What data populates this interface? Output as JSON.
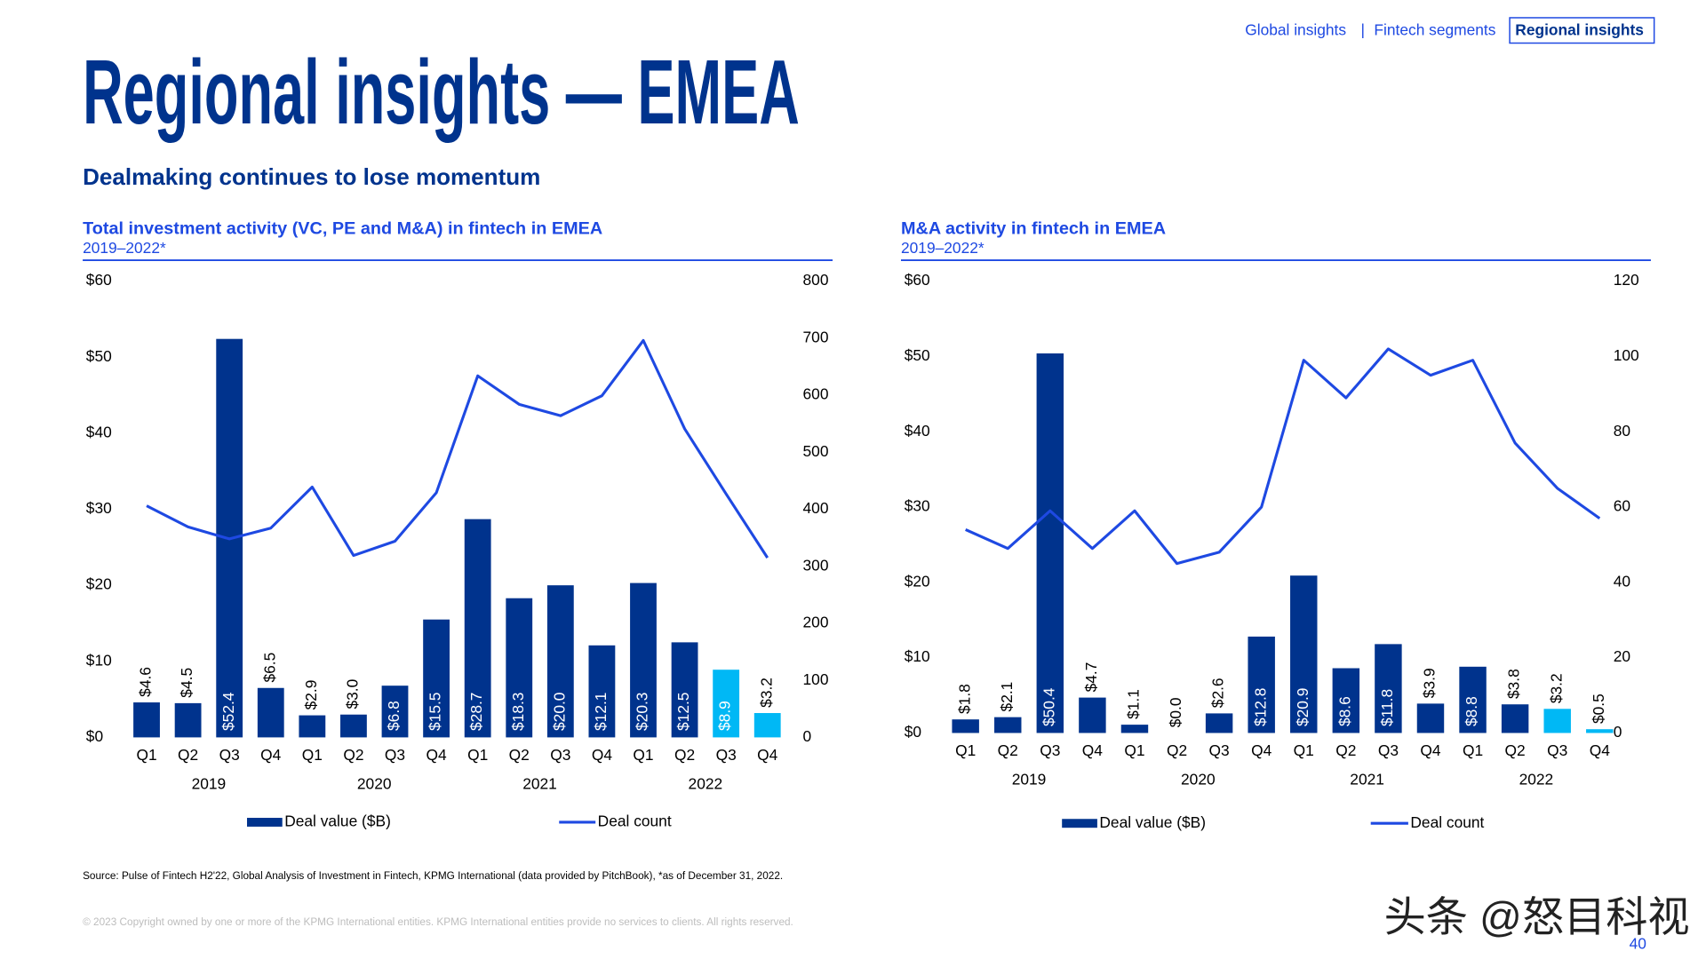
{
  "header": {
    "nav": [
      "Global insights",
      "|",
      "Fintech segments",
      "Regional insights"
    ],
    "title": "Regional insights — EMEA",
    "subtitle": "Dealmaking continues to lose momentum"
  },
  "chart_data": [
    {
      "type": "combo",
      "title": "Total investment activity (VC, PE and M&A) in fintech in EMEA",
      "subtitle": "2019–2022*",
      "categories": [
        "Q1",
        "Q2",
        "Q3",
        "Q4",
        "Q1",
        "Q2",
        "Q3",
        "Q4",
        "Q1",
        "Q2",
        "Q3",
        "Q4",
        "Q1",
        "Q2",
        "Q3",
        "Q4"
      ],
      "groups": [
        "2019",
        "2020",
        "2021",
        "2022"
      ],
      "series": [
        {
          "name": "Deal value ($B)",
          "type": "bar",
          "color": "#00338d",
          "colors": [
            "#00338d",
            "#00338d",
            "#00338d",
            "#00338d",
            "#00338d",
            "#00338d",
            "#00338d",
            "#00338d",
            "#00338d",
            "#00338d",
            "#00338d",
            "#00338d",
            "#00338d",
            "#00338d",
            "#00b8f5",
            "#00b8f5"
          ],
          "values": [
            4.6,
            4.5,
            52.4,
            6.5,
            2.9,
            3.0,
            6.8,
            15.5,
            28.7,
            18.3,
            20.0,
            12.1,
            20.3,
            12.5,
            8.9,
            3.2
          ],
          "value_labels": [
            "$4.6",
            "$4.5",
            "$52.4",
            "$6.5",
            "$2.9",
            "$3.0",
            "$6.8",
            "$15.5",
            "$28.7",
            "$18.3",
            "$20.0",
            "$12.1",
            "$20.3",
            "$12.5",
            "$8.9",
            "$3.2"
          ]
        },
        {
          "name": "Deal count",
          "type": "line",
          "axis": "y2",
          "color": "#1e49e2",
          "values": [
            406,
            369,
            348,
            367,
            439,
            319,
            344,
            429,
            634,
            584,
            564,
            599,
            696,
            541,
            427,
            315
          ]
        }
      ],
      "ylim": [
        0,
        60
      ],
      "yticks": [
        {
          "value": 0,
          "label": "$0"
        },
        {
          "value": 10,
          "label": "$10"
        },
        {
          "value": 20,
          "label": "$20"
        },
        {
          "value": 30,
          "label": "$30"
        },
        {
          "value": 40,
          "label": "$40"
        },
        {
          "value": 50,
          "label": "$50"
        },
        {
          "value": 60,
          "label": "$60"
        }
      ],
      "y2lim": [
        0,
        800
      ],
      "y2ticks": [
        0,
        100,
        200,
        300,
        400,
        500,
        600,
        700,
        800
      ]
    },
    {
      "type": "combo",
      "title": "M&A activity in fintech in EMEA",
      "subtitle": "2019–2022*",
      "categories": [
        "Q1",
        "Q2",
        "Q3",
        "Q4",
        "Q1",
        "Q2",
        "Q3",
        "Q4",
        "Q1",
        "Q2",
        "Q3",
        "Q4",
        "Q1",
        "Q2",
        "Q3",
        "Q4"
      ],
      "groups": [
        "2019",
        "2020",
        "2021",
        "2022"
      ],
      "series": [
        {
          "name": "Deal value ($B)",
          "type": "bar",
          "color": "#00338d",
          "colors": [
            "#00338d",
            "#00338d",
            "#00338d",
            "#00338d",
            "#00338d",
            "#00338d",
            "#00338d",
            "#00338d",
            "#00338d",
            "#00338d",
            "#00338d",
            "#00338d",
            "#00338d",
            "#00338d",
            "#00b8f5",
            "#00b8f5"
          ],
          "values": [
            1.8,
            2.1,
            50.4,
            4.7,
            1.1,
            0.0,
            2.6,
            12.8,
            20.9,
            8.6,
            11.8,
            3.9,
            8.8,
            3.8,
            3.2,
            0.5
          ],
          "value_labels": [
            "$1.8",
            "$2.1",
            "$50.4",
            "$4.7",
            "$1.1",
            "$0.0",
            "$2.6",
            "$12.8",
            "$20.9",
            "$8.6",
            "$11.8",
            "$3.9",
            "$8.8",
            "$3.8",
            "$3.2",
            "$0.5"
          ]
        },
        {
          "name": "Deal count",
          "type": "line",
          "axis": "y2",
          "color": "#1e49e2",
          "values": [
            54,
            49,
            59,
            49,
            59,
            45,
            48,
            60,
            99,
            89,
            102,
            95,
            99,
            77,
            65,
            57
          ]
        }
      ],
      "ylim": [
        0,
        60
      ],
      "yticks": [
        {
          "value": 0,
          "label": "$0"
        },
        {
          "value": 10,
          "label": "$10"
        },
        {
          "value": 20,
          "label": "$20"
        },
        {
          "value": 30,
          "label": "$30"
        },
        {
          "value": 40,
          "label": "$40"
        },
        {
          "value": 50,
          "label": "$50"
        },
        {
          "value": 60,
          "label": "$60"
        }
      ],
      "y2lim": [
        0,
        120
      ],
      "y2ticks": [
        0,
        20,
        40,
        60,
        80,
        100,
        120
      ]
    }
  ],
  "footer": {
    "source": "Source: Pulse of Fintech H2'22, Global Analysis of Investment in Fintech, KPMG International (data provided by PitchBook), *as of December 31, 2022.",
    "copyright": "© 2023 Copyright owned by one or more of the KPMG International entities. KPMG International entities provide no services to clients. All rights reserved.",
    "page_number": "40",
    "watermark": "头条 @怒目科视"
  }
}
